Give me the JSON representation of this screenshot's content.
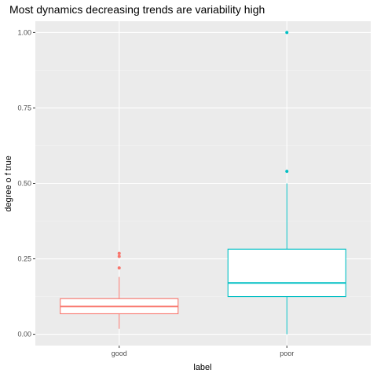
{
  "chart_data": {
    "type": "boxplot",
    "title": "Most dynamics decreasing trends are variability high",
    "xlabel": "label",
    "ylabel": "degree o f true",
    "categories": [
      "good",
      "poor"
    ],
    "ylim": [
      -0.0375,
      1.0375
    ],
    "yticks": [
      0.0,
      0.25,
      0.5,
      0.75,
      1.0
    ],
    "ytick_labels": [
      "0.00",
      "0.25",
      "0.50",
      "0.75",
      "1.00"
    ],
    "grid": true,
    "legend": "none",
    "boxes": [
      {
        "category": "good",
        "color": "#F8766D",
        "whisker_low": 0.018,
        "q1": 0.068,
        "median": 0.092,
        "q3": 0.118,
        "whisker_high": 0.19,
        "outliers": [
          0.22,
          0.258,
          0.268
        ]
      },
      {
        "category": "poor",
        "color": "#00BFC4",
        "whisker_low": 0.0,
        "q1": 0.125,
        "median": 0.17,
        "q3": 0.282,
        "whisker_high": 0.5,
        "outliers": [
          0.54,
          1.0
        ]
      }
    ],
    "colors": {
      "panel": "#EBEBEB",
      "grid_major": "#FFFFFF",
      "tick": "#333333"
    }
  }
}
